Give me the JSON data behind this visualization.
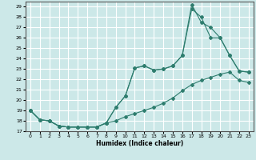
{
  "title": "",
  "xlabel": "Humidex (Indice chaleur)",
  "bg_color": "#cce8e8",
  "grid_color": "#ffffff",
  "line_color": "#2e7d6e",
  "xlim": [
    -0.5,
    23.5
  ],
  "ylim": [
    17,
    29.5
  ],
  "xticks": [
    0,
    1,
    2,
    3,
    4,
    5,
    6,
    7,
    8,
    9,
    10,
    11,
    12,
    13,
    14,
    15,
    16,
    17,
    18,
    19,
    20,
    21,
    22,
    23
  ],
  "yticks": [
    17,
    18,
    19,
    20,
    21,
    22,
    23,
    24,
    25,
    26,
    27,
    28,
    29
  ],
  "line1_x": [
    0,
    1,
    2,
    3,
    4,
    5,
    6,
    7,
    8,
    9,
    10,
    11,
    12,
    13,
    14,
    15,
    16,
    17,
    18,
    19,
    20,
    21,
    22,
    23
  ],
  "line1_y": [
    19.0,
    18.1,
    18.0,
    17.5,
    17.4,
    17.4,
    17.4,
    17.4,
    17.8,
    18.0,
    18.4,
    18.7,
    19.0,
    19.3,
    19.7,
    20.2,
    20.9,
    21.5,
    21.9,
    22.2,
    22.5,
    22.7,
    21.9,
    21.7
  ],
  "line2_x": [
    0,
    1,
    2,
    3,
    4,
    5,
    6,
    7,
    8,
    9,
    10,
    11,
    12,
    13,
    14,
    15,
    16,
    17,
    18,
    19,
    20,
    21,
    22,
    23
  ],
  "line2_y": [
    19.0,
    18.1,
    18.0,
    17.5,
    17.4,
    17.4,
    17.4,
    17.4,
    17.8,
    19.3,
    20.4,
    23.1,
    23.3,
    22.9,
    23.0,
    23.3,
    24.3,
    28.8,
    28.0,
    26.0,
    26.0,
    24.3,
    22.8,
    22.7
  ],
  "line3_x": [
    0,
    1,
    2,
    3,
    4,
    5,
    6,
    7,
    8,
    9,
    10,
    11,
    12,
    13,
    14,
    15,
    16,
    17,
    18,
    19,
    20,
    21,
    22,
    23
  ],
  "line3_y": [
    19.0,
    18.1,
    18.0,
    17.5,
    17.4,
    17.4,
    17.4,
    17.4,
    17.8,
    19.3,
    20.4,
    23.1,
    23.3,
    22.9,
    23.0,
    23.3,
    24.3,
    29.2,
    27.5,
    27.0,
    26.0,
    24.3,
    22.8,
    22.7
  ]
}
